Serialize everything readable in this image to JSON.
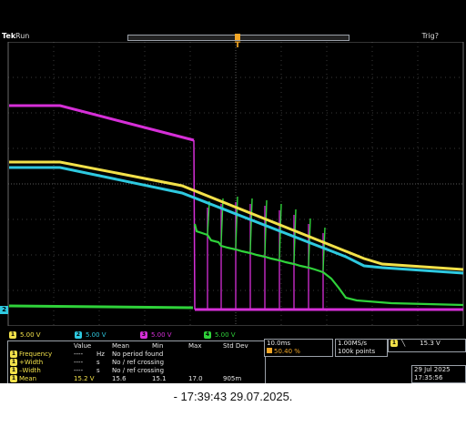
{
  "header": {
    "brand": "Tek",
    "state": "Run",
    "trigger_status": "Trig?",
    "trigger_marker": "T"
  },
  "channel_marker": "2",
  "channels": [
    {
      "num": "1",
      "scale": "5.00 V",
      "color": "#f2e14a"
    },
    {
      "num": "2",
      "scale": "5.00 V",
      "color": "#2ec9e0"
    },
    {
      "num": "3",
      "scale": "5.00 V",
      "color": "#d62fd8"
    },
    {
      "num": "4",
      "scale": "5.00 V",
      "color": "#2fd23a"
    }
  ],
  "measurements": {
    "headers": [
      "Value",
      "Mean",
      "Min",
      "Max",
      "Std Dev"
    ],
    "rows": [
      {
        "ch": "1",
        "label": "Frequency",
        "value": "----",
        "unit": "Hz",
        "note": "No period found",
        "mean": "",
        "min": "",
        "max": "",
        "std": ""
      },
      {
        "ch": "1",
        "label": "+Width",
        "value": "----",
        "unit": "s",
        "note": "No ∕ ref crossing",
        "mean": "",
        "min": "",
        "max": "",
        "std": ""
      },
      {
        "ch": "1",
        "label": "–Width",
        "value": "----",
        "unit": "s",
        "note": "No ∕ ref crossing",
        "mean": "",
        "min": "",
        "max": "",
        "std": ""
      },
      {
        "ch": "1",
        "label": "Mean",
        "value": "15.2 V",
        "unit": "",
        "note": "",
        "mean": "15.6",
        "min": "15.1",
        "max": "17.0",
        "std": "905m"
      }
    ]
  },
  "timebase": {
    "scale": "10.0ms",
    "position": "50.40 %"
  },
  "acquisition": {
    "rate": "1.00MS/s",
    "points": "100k points"
  },
  "trigger": {
    "ch": "1",
    "slope": "╲",
    "level": "15.3 V"
  },
  "datetime": {
    "date": "29 Jul  2025",
    "time": "17:35:56"
  },
  "caption": "- 17:39:43   29.07.2025."
}
